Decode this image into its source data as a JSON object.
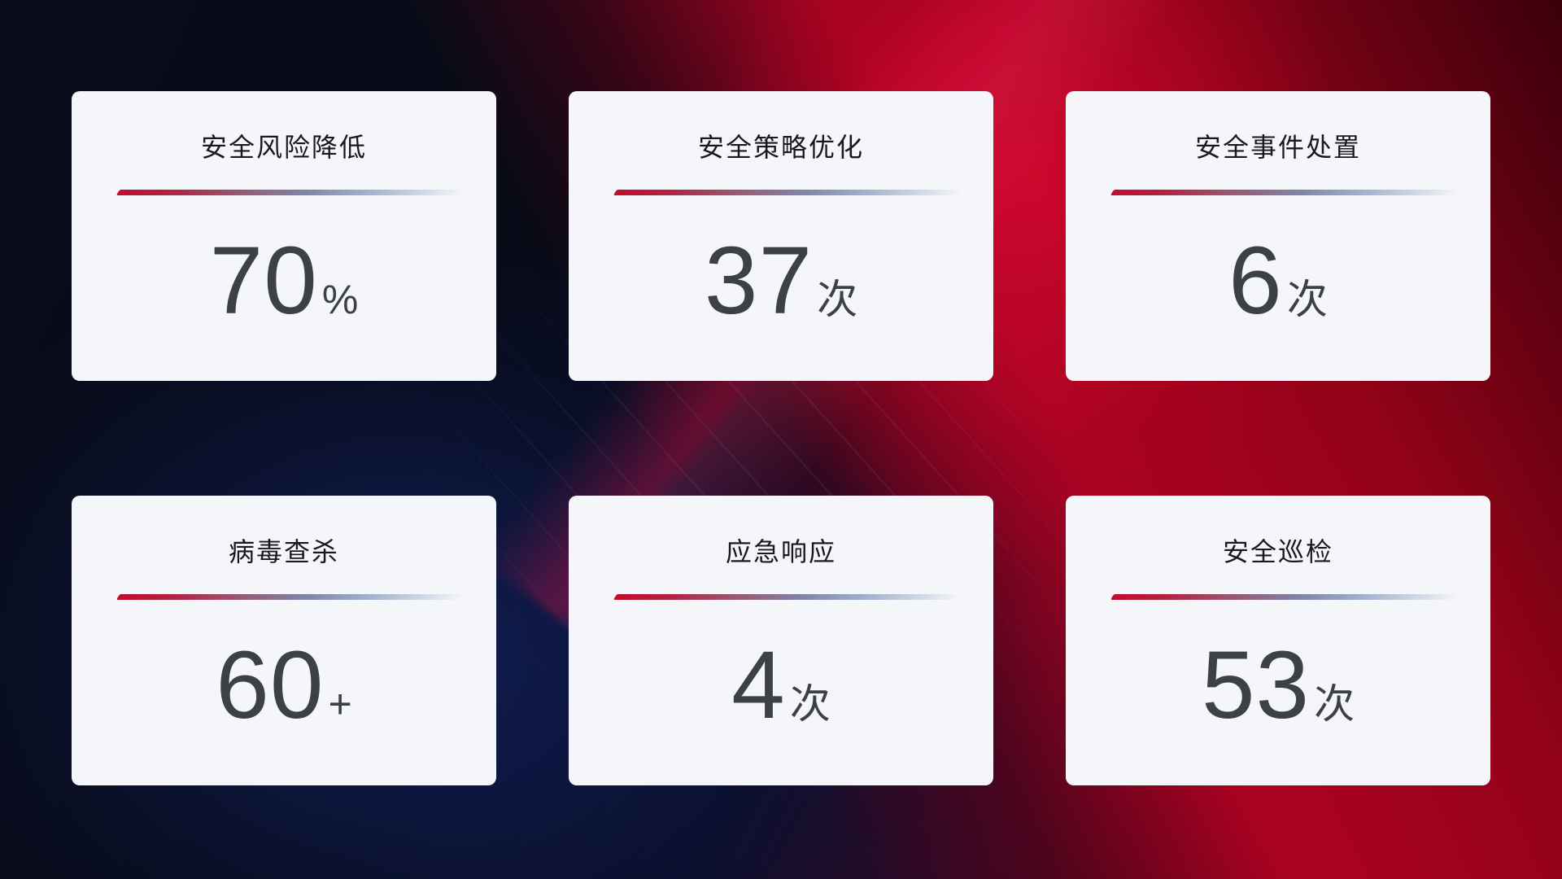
{
  "theme": {
    "accent_red": "#C20D2F",
    "divider_blue": "#9FB0CB",
    "card_background": "#F5F6FA",
    "title_color": "#17191E",
    "value_color": "#3D4147",
    "background_dark_navy": "#070A16",
    "background_blue_glow": "#182E88",
    "background_red": "#B20222"
  },
  "cards": [
    {
      "title": "安全风险降低",
      "value": "70",
      "unit": "%"
    },
    {
      "title": "安全策略优化",
      "value": "37",
      "unit": "次"
    },
    {
      "title": "安全事件处置",
      "value": "6",
      "unit": "次"
    },
    {
      "title": "病毒查杀",
      "value": "60",
      "unit": "+"
    },
    {
      "title": "应急响应",
      "value": "4",
      "unit": "次"
    },
    {
      "title": "安全巡检",
      "value": "53",
      "unit": "次"
    }
  ]
}
